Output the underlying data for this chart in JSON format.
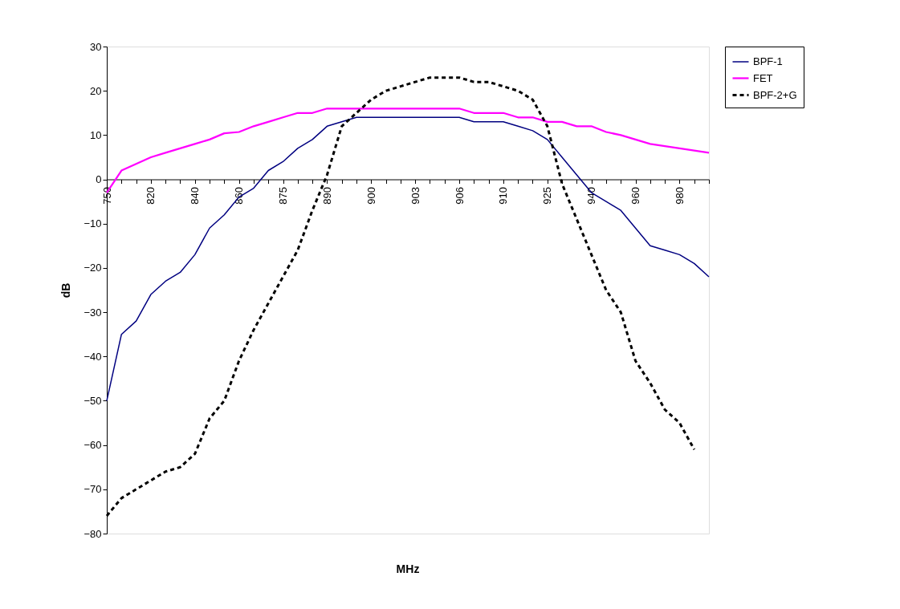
{
  "chart_data": {
    "type": "line",
    "xlabel": "MHz",
    "ylabel": "dB",
    "categories": [
      "750",
      null,
      null,
      "820",
      null,
      null,
      "840",
      null,
      null,
      "860",
      null,
      null,
      "875",
      null,
      null,
      "890",
      null,
      null,
      "900",
      null,
      null,
      "903",
      null,
      null,
      "906",
      null,
      null,
      "910",
      null,
      null,
      "925",
      null,
      null,
      "940",
      null,
      null,
      "960",
      null,
      null,
      "980",
      null,
      null
    ],
    "series": [
      {
        "name": "BPF-1",
        "color": "#000080",
        "line_style": "solid",
        "values": [
          -50,
          -35,
          -32,
          -26,
          -23,
          -21,
          -17,
          -11,
          -8,
          -4,
          -2,
          2,
          4,
          7,
          9,
          12,
          13,
          14,
          14,
          14,
          14,
          14,
          14,
          14,
          14,
          13,
          13,
          13,
          12,
          11,
          9,
          5,
          1,
          -3,
          -5,
          -7,
          -11,
          -15,
          -16,
          -17,
          -19,
          -22
        ]
      },
      {
        "name": "FET",
        "color": "#ff00ff",
        "line_style": "solid",
        "values": [
          -3,
          2,
          3.5,
          5,
          6,
          7,
          8,
          9,
          10.4,
          10.7,
          12,
          13,
          14,
          15,
          15,
          16,
          16,
          16,
          16,
          16,
          16,
          16,
          16,
          16,
          16,
          15,
          15,
          15,
          14,
          14,
          13,
          13,
          12,
          12,
          10.7,
          10,
          9,
          8,
          7.5,
          7,
          6.5,
          6
        ]
      },
      {
        "name": "BPF-2+G",
        "color": "#000000",
        "line_style": "dashed",
        "values": [
          -76,
          -72,
          -70,
          -68,
          -66,
          -65,
          -62,
          -54,
          -50,
          -41,
          -34,
          -28,
          -22,
          -16,
          -7,
          1,
          12,
          15,
          18,
          20,
          21,
          22,
          23,
          23,
          23,
          22,
          22,
          21,
          20,
          18,
          12,
          -1,
          -9,
          -17,
          -25,
          -30,
          -41,
          -46,
          -52,
          -55,
          -61,
          null
        ]
      }
    ],
    "ylim": [
      -80,
      30
    ],
    "yticks": [
      -80,
      -70,
      -60,
      -50,
      -40,
      -30,
      -20,
      -10,
      0,
      10,
      20,
      30
    ],
    "grid": false,
    "legend": "right"
  }
}
